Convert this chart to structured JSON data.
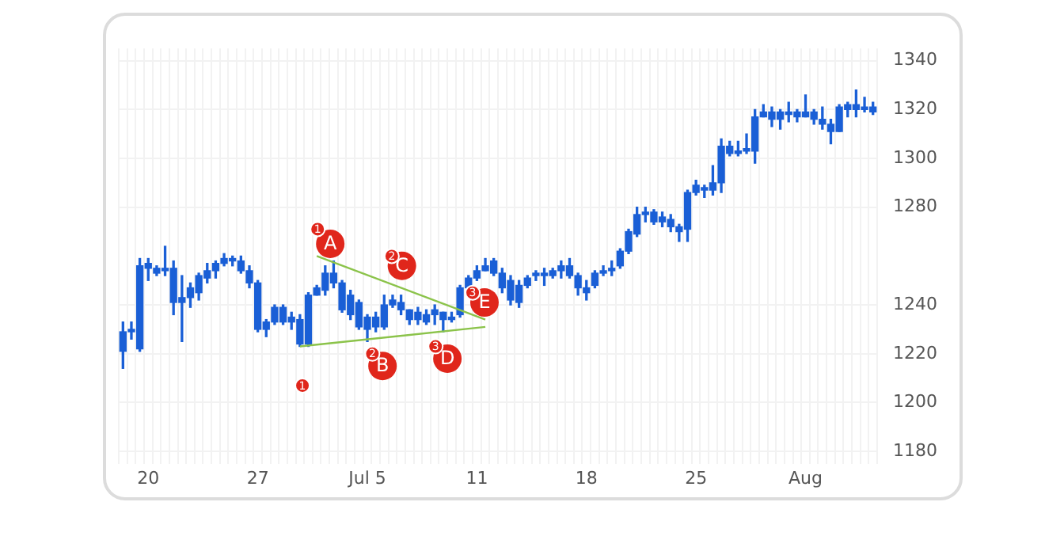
{
  "chart_data": {
    "type": "candlestick",
    "categories": [
      null,
      null,
      null,
      "20",
      null,
      null,
      null,
      null,
      null,
      null,
      null,
      null,
      null,
      null,
      null,
      null,
      "27",
      null,
      null,
      null,
      null,
      null,
      null,
      null,
      null,
      null,
      null,
      null,
      null,
      "Jul 5",
      null,
      null,
      null,
      null,
      null,
      null,
      null,
      null,
      null,
      null,
      null,
      null,
      "11",
      null,
      null,
      null,
      null,
      null,
      null,
      null,
      null,
      null,
      null,
      null,
      null,
      "18",
      null,
      null,
      null,
      null,
      null,
      null,
      null,
      null,
      null,
      null,
      null,
      null,
      "25",
      null,
      null,
      null,
      null,
      null,
      null,
      null,
      null,
      null,
      null,
      null,
      null,
      "Aug",
      null,
      null,
      null,
      null,
      null,
      null,
      null,
      null
    ],
    "ohlc": [
      [
        1221,
        1233,
        1214,
        1229
      ],
      [
        1229,
        1233,
        1226,
        1230
      ],
      [
        1222,
        1259,
        1221,
        1256
      ],
      [
        1255,
        1259,
        1250,
        1257
      ],
      [
        1253,
        1256,
        1252,
        1255
      ],
      [
        1254,
        1264,
        1252,
        1255
      ],
      [
        1241,
        1258,
        1236,
        1255
      ],
      [
        1241,
        1252,
        1225,
        1243
      ],
      [
        1243,
        1249,
        1239,
        1247
      ],
      [
        1245,
        1253,
        1242,
        1252
      ],
      [
        1251,
        1257,
        1249,
        1254
      ],
      [
        1254,
        1258,
        1251,
        1257
      ],
      [
        1257,
        1261,
        1256,
        1259
      ],
      [
        1258,
        1260,
        1256,
        1259
      ],
      [
        1254,
        1260,
        1253,
        1258
      ],
      [
        1249,
        1256,
        1247,
        1254
      ],
      [
        1230,
        1250,
        1229,
        1249
      ],
      [
        1230,
        1234,
        1227,
        1233
      ],
      [
        1233,
        1240,
        1232,
        1239
      ],
      [
        1233,
        1240,
        1232,
        1239
      ],
      [
        1233,
        1237,
        1230,
        1235
      ],
      [
        1224,
        1236,
        1223,
        1234
      ],
      [
        1224,
        1245,
        1223,
        1244
      ],
      [
        1244,
        1248,
        1244,
        1247
      ],
      [
        1246,
        1256,
        1244,
        1253
      ],
      [
        1249,
        1258,
        1247,
        1253
      ],
      [
        1238,
        1250,
        1237,
        1249
      ],
      [
        1236,
        1246,
        1234,
        1244
      ],
      [
        1231,
        1242,
        1230,
        1241
      ],
      [
        1230,
        1236,
        1225,
        1235
      ],
      [
        1231,
        1237,
        1229,
        1235
      ],
      [
        1231,
        1244,
        1230,
        1240
      ],
      [
        1240,
        1244,
        1239,
        1242
      ],
      [
        1238,
        1244,
        1236,
        1241
      ],
      [
        1234,
        1238,
        1232,
        1238
      ],
      [
        1234,
        1239,
        1232,
        1237
      ],
      [
        1233,
        1238,
        1232,
        1236
      ],
      [
        1236,
        1240,
        1232,
        1238
      ],
      [
        1234,
        1237,
        1229,
        1237
      ],
      [
        1234,
        1237,
        1233,
        1235
      ],
      [
        1236,
        1248,
        1235,
        1247
      ],
      [
        1247,
        1252,
        1246,
        1251
      ],
      [
        1251,
        1256,
        1250,
        1254
      ],
      [
        1254,
        1259,
        1254,
        1256
      ],
      [
        1253,
        1259,
        1252,
        1258
      ],
      [
        1247,
        1255,
        1245,
        1253
      ],
      [
        1242,
        1252,
        1240,
        1250
      ],
      [
        1241,
        1250,
        1239,
        1248
      ],
      [
        1248,
        1252,
        1247,
        1251
      ],
      [
        1252,
        1254,
        1250,
        1253
      ],
      [
        1252,
        1255,
        1248,
        1253
      ],
      [
        1252,
        1255,
        1251,
        1254
      ],
      [
        1254,
        1258,
        1251,
        1256
      ],
      [
        1252,
        1259,
        1251,
        1256
      ],
      [
        1247,
        1253,
        1244,
        1252
      ],
      [
        1245,
        1250,
        1242,
        1247
      ],
      [
        1248,
        1254,
        1247,
        1253
      ],
      [
        1253,
        1256,
        1252,
        1254
      ],
      [
        1254,
        1258,
        1252,
        1255
      ],
      [
        1256,
        1263,
        1255,
        1262
      ],
      [
        1262,
        1271,
        1261,
        1270
      ],
      [
        1269,
        1280,
        1268,
        1277
      ],
      [
        1277,
        1280,
        1274,
        1278
      ],
      [
        1274,
        1279,
        1273,
        1278
      ],
      [
        1274,
        1278,
        1272,
        1276
      ],
      [
        1272,
        1277,
        1270,
        1275
      ],
      [
        1270,
        1273,
        1266,
        1272
      ],
      [
        1271,
        1287,
        1266,
        1286
      ],
      [
        1286,
        1291,
        1285,
        1289
      ],
      [
        1287,
        1289,
        1284,
        1288
      ],
      [
        1287,
        1297,
        1285,
        1290
      ],
      [
        1290,
        1308,
        1286,
        1305
      ],
      [
        1302,
        1307,
        1301,
        1305
      ],
      [
        1302,
        1307,
        1301,
        1303
      ],
      [
        1303,
        1310,
        1302,
        1304
      ],
      [
        1303,
        1320,
        1298,
        1317
      ],
      [
        1317,
        1322,
        1317,
        1319
      ],
      [
        1316,
        1321,
        1313,
        1319
      ],
      [
        1316,
        1320,
        1312,
        1319
      ],
      [
        1318,
        1323,
        1315,
        1319
      ],
      [
        1317,
        1320,
        1315,
        1319
      ],
      [
        1317,
        1326,
        1317,
        1319
      ],
      [
        1316,
        1320,
        1314,
        1319
      ],
      [
        1314,
        1321,
        1312,
        1316
      ],
      [
        1311,
        1316,
        1306,
        1314
      ],
      [
        1311,
        1322,
        1311,
        1321
      ],
      [
        1320,
        1323,
        1317,
        1322
      ],
      [
        1320,
        1328,
        1317,
        1322
      ],
      [
        1320,
        1325,
        1319,
        1321
      ],
      [
        1319,
        1323,
        1318,
        1321
      ]
    ],
    "color": "#1a5fd6",
    "series": [
      {
        "type": "line",
        "color": "#8bc34a",
        "values": [
          null,
          null,
          null,
          null,
          null,
          null,
          null,
          null,
          null,
          null,
          null,
          null,
          null,
          null,
          null,
          null,
          null,
          null,
          null,
          null,
          null,
          null,
          null,
          1260,
          null,
          null,
          null,
          null,
          null,
          null,
          null,
          null,
          null,
          null,
          null,
          null,
          null,
          null,
          null,
          null,
          null,
          null,
          null,
          1234,
          null,
          null,
          null,
          null,
          null,
          null,
          null,
          null,
          null,
          null,
          null,
          null,
          null,
          null,
          null,
          null,
          null,
          null,
          null,
          null,
          null,
          null,
          null,
          null,
          null,
          null,
          null,
          null,
          null,
          null,
          null,
          null,
          null,
          null,
          null,
          null,
          null,
          null,
          null,
          null,
          null,
          null,
          null,
          null,
          null,
          null
        ]
      },
      {
        "type": "line",
        "color": "#8bc34a",
        "values": [
          null,
          null,
          null,
          null,
          null,
          null,
          null,
          null,
          null,
          null,
          null,
          null,
          null,
          null,
          null,
          null,
          null,
          null,
          null,
          null,
          null,
          1223,
          null,
          null,
          null,
          null,
          null,
          null,
          null,
          null,
          null,
          null,
          null,
          null,
          null,
          null,
          null,
          null,
          null,
          null,
          null,
          null,
          null,
          1231,
          null,
          null,
          null,
          null,
          null,
          null,
          null,
          null,
          null,
          null,
          null,
          null,
          null,
          null,
          null,
          null,
          null,
          null,
          null,
          null,
          null,
          null,
          null,
          null,
          null,
          null,
          null,
          null,
          null,
          null,
          null,
          null,
          null,
          null,
          null,
          null,
          null,
          null,
          null,
          null,
          null,
          null,
          null,
          null,
          null,
          null
        ]
      }
    ],
    "annotations": [
      {
        "text": "A",
        "y": 1265
      },
      {
        "text": "1",
        "y": 1271
      },
      {
        "text": "C",
        "y": 1256
      },
      {
        "text": "2",
        "y": 1260
      },
      {
        "text": "E",
        "y": 1241
      },
      {
        "text": "3",
        "y": 1245
      },
      {
        "text": "B",
        "y": 1215
      },
      {
        "text": "2",
        "y": 1220
      },
      {
        "text": "D",
        "y": 1218
      },
      {
        "text": "3",
        "y": 1223
      },
      {
        "text": "1",
        "y": 1207
      }
    ],
    "ylim": [
      1175,
      1345
    ],
    "yticks": [
      1180,
      1200,
      1220,
      1240,
      1280,
      1300,
      1320,
      1340
    ],
    "grid": true,
    "legend": false
  }
}
